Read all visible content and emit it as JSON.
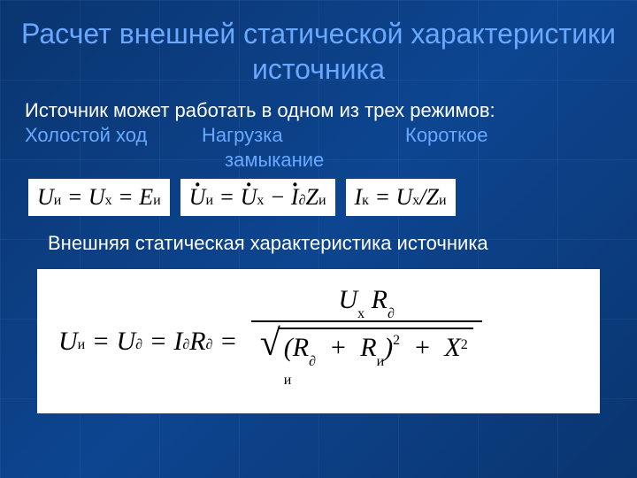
{
  "colors": {
    "background_gradient": [
      "#0a3570",
      "#0d4590",
      "#0a3570"
    ],
    "grid_line": "rgba(120,180,255,0.08)",
    "title_color": "#6aa8ff",
    "text_color": "#ffffff",
    "formula_bg": "#ffffff",
    "formula_fg": "#000000"
  },
  "typography": {
    "title_fontsize": 32,
    "body_fontsize": 22,
    "formula_fontsize": 26,
    "big_formula_fontsize": 30,
    "body_family": "Arial",
    "formula_family": "Times New Roman"
  },
  "title": "Расчет внешней статической характеристики источника",
  "intro": "Источник может работать в одном из трех режимов:",
  "modes": {
    "m1": "Холостой ход",
    "m2": "Нагрузка",
    "m3": "Короткое",
    "m3_wrap": "замыкание"
  },
  "equations": {
    "eq1": {
      "lhs_var": "U",
      "lhs_sub": "и",
      "mid_var": "U",
      "mid_sub": "х",
      "rhs_var": "E",
      "rhs_sub": "и"
    },
    "eq2": {
      "lhs_var": "U",
      "lhs_sub": "и",
      "r1_var": "U",
      "r1_sub": "х",
      "r2_var": "I",
      "r2_sub": "∂",
      "r3_var": "Z",
      "r3_sub": "и"
    },
    "eq3": {
      "lhs_var": "I",
      "lhs_sub": "к",
      "num_var": "U",
      "num_sub": "х",
      "den_var": "Z",
      "den_sub": "и"
    }
  },
  "subtitle": "Внешняя статическая характеристика источника",
  "big_equation": {
    "t1_var": "U",
    "t1_sub": "и",
    "t2_var": "U",
    "t2_sub": "∂",
    "t3_var": "I",
    "t3_sub": "∂",
    "t4_var": "R",
    "t4_sub": "∂",
    "num1_var": "U",
    "num1_sub": "х",
    "num2_var": "R",
    "num2_sub": "∂",
    "d1_var": "R",
    "d1_sub": "∂",
    "d2_var": "R",
    "d2_sub": "и",
    "d3_var": "X",
    "d3_sub": "и",
    "exp": "2"
  }
}
